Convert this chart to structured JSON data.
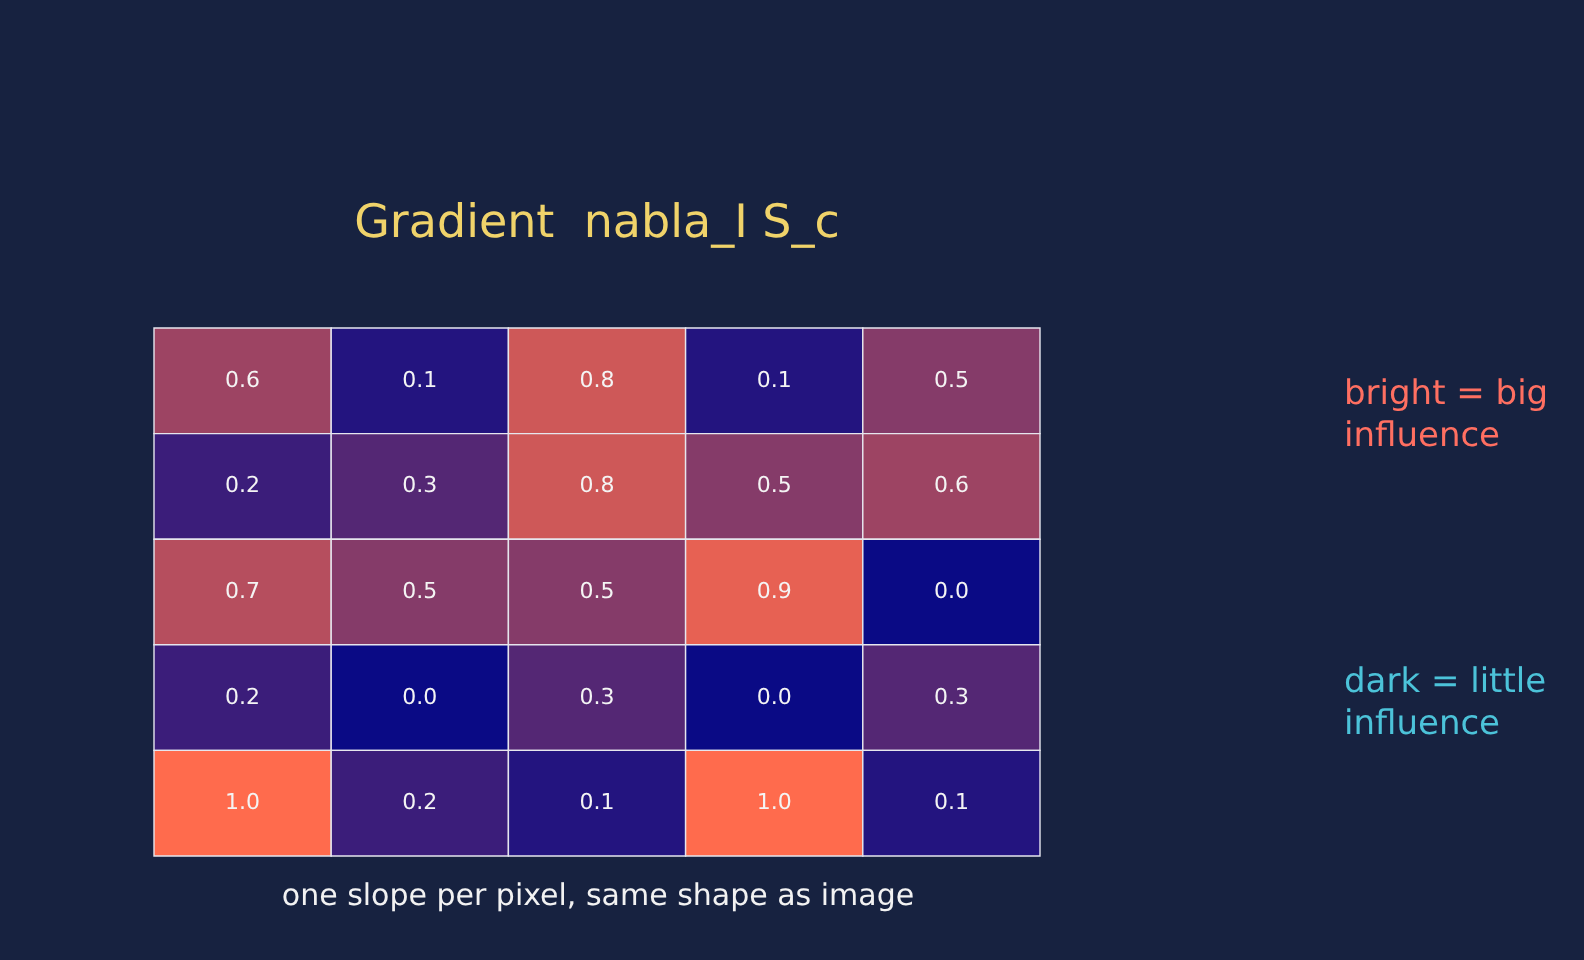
{
  "chart_data": {
    "type": "heatmap",
    "title": "Gradient  nabla_I S_c",
    "xlabel": "one slope per pixel, same shape as image",
    "annotations": [
      "bright = big influence",
      "dark = little influence"
    ],
    "categories": [
      null,
      null,
      null,
      null,
      null
    ],
    "y_categories": [
      null,
      null,
      null,
      null,
      null
    ],
    "cells": [
      [
        0.6,
        0.1,
        0.8,
        0.1,
        0.5
      ],
      [
        0.2,
        0.3,
        0.8,
        0.5,
        0.6
      ],
      [
        0.7,
        0.5,
        0.5,
        0.9,
        0.0
      ],
      [
        0.2,
        0.0,
        0.3,
        0.0,
        0.3
      ],
      [
        1.0,
        0.2,
        0.1,
        1.0,
        0.1
      ]
    ],
    "cell_labels": [
      [
        "0.6",
        "0.1",
        "0.8",
        "0.1",
        "0.5"
      ],
      [
        "0.2",
        "0.3",
        "0.8",
        "0.5",
        "0.6"
      ],
      [
        "0.7",
        "0.5",
        "0.5",
        "0.9",
        "0.0"
      ],
      [
        "0.2",
        "0.0",
        "0.3",
        "0.0",
        "0.3"
      ],
      [
        "1.0",
        "0.2",
        "0.1",
        "1.0",
        "0.1"
      ]
    ]
  }
}
